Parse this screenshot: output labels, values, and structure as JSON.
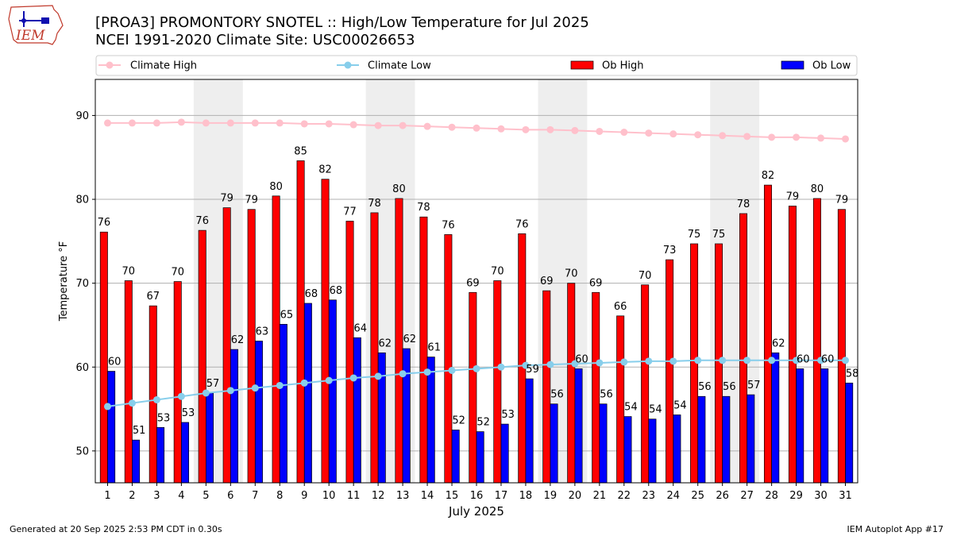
{
  "header": {
    "title_line1": "[PROA3] PROMONTORY SNOTEL :: High/Low Temperature for Jul 2025",
    "title_line2": "NCEI 1991-2020 Climate Site: USC00026653",
    "logo_text": "IEM"
  },
  "footer": {
    "generated": "Generated at 20 Sep 2025 2:53 PM CDT in 0.30s",
    "app": "IEM Autoplot App #17"
  },
  "colors": {
    "ob_high": "#ff0000",
    "ob_low": "#0000ff",
    "climate_high": "#ffc0cb",
    "climate_low": "#87ceeb",
    "weekend_shade": "#eeeeee",
    "grid": "#b0b0b0"
  },
  "chart_data": {
    "type": "bar",
    "xlabel": "July 2025",
    "ylabel": "Temperature °F",
    "ylim": [
      46.2,
      94.3
    ],
    "yticks": [
      50,
      60,
      70,
      80,
      90
    ],
    "grid": "horizontal",
    "legend_position": "top",
    "categories": [
      "1",
      "2",
      "3",
      "4",
      "5",
      "6",
      "7",
      "8",
      "9",
      "10",
      "11",
      "12",
      "13",
      "14",
      "15",
      "16",
      "17",
      "18",
      "19",
      "20",
      "21",
      "22",
      "23",
      "24",
      "25",
      "26",
      "27",
      "28",
      "29",
      "30",
      "31"
    ],
    "shaded_days": [
      [
        5,
        6
      ],
      [
        12,
        13
      ],
      [
        19,
        20
      ],
      [
        26,
        27
      ]
    ],
    "series": [
      {
        "name": "Climate High",
        "kind": "line",
        "values": [
          89.1,
          89.1,
          89.1,
          89.2,
          89.1,
          89.1,
          89.1,
          89.1,
          89.0,
          89.0,
          88.9,
          88.8,
          88.8,
          88.7,
          88.6,
          88.5,
          88.4,
          88.3,
          88.3,
          88.2,
          88.1,
          88.0,
          87.9,
          87.8,
          87.7,
          87.6,
          87.5,
          87.4,
          87.4,
          87.3,
          87.2
        ]
      },
      {
        "name": "Climate Low",
        "kind": "line",
        "values": [
          55.3,
          55.7,
          56.1,
          56.5,
          56.9,
          57.2,
          57.5,
          57.8,
          58.1,
          58.4,
          58.7,
          58.9,
          59.2,
          59.4,
          59.6,
          59.8,
          60.0,
          60.2,
          60.3,
          60.4,
          60.5,
          60.6,
          60.7,
          60.7,
          60.8,
          60.8,
          60.8,
          60.8,
          60.8,
          60.8,
          60.8
        ]
      },
      {
        "name": "Ob High",
        "kind": "bar",
        "values": [
          76.1,
          70.3,
          67.3,
          70.2,
          76.3,
          79.0,
          78.8,
          80.4,
          84.6,
          82.4,
          77.4,
          78.4,
          80.1,
          77.9,
          75.8,
          68.9,
          70.3,
          75.9,
          69.1,
          70.0,
          68.9,
          66.1,
          69.8,
          72.8,
          74.7,
          74.7,
          78.3,
          81.7,
          79.2,
          80.1,
          78.8
        ],
        "labels": [
          "76",
          "70",
          "67",
          "70",
          "76",
          "79",
          "79",
          "80",
          "85",
          "82",
          "77",
          "78",
          "80",
          "78",
          "76",
          "69",
          "70",
          "76",
          "69",
          "70",
          "69",
          "66",
          "70",
          "73",
          "75",
          "75",
          "78",
          "82",
          "79",
          "80",
          "79"
        ]
      },
      {
        "name": "Ob Low",
        "kind": "bar",
        "values": [
          59.5,
          51.3,
          52.8,
          53.4,
          56.9,
          62.1,
          63.1,
          65.1,
          67.6,
          68.0,
          63.5,
          61.7,
          62.2,
          61.2,
          52.5,
          52.3,
          53.2,
          58.6,
          55.6,
          59.8,
          55.6,
          54.1,
          53.8,
          54.3,
          56.5,
          56.5,
          56.7,
          61.7,
          59.8,
          59.8,
          58.1
        ],
        "labels": [
          "60",
          "51",
          "53",
          "53",
          "57",
          "62",
          "63",
          "65",
          "68",
          "68",
          "64",
          "62",
          "62",
          "61",
          "52",
          "52",
          "53",
          "59",
          "56",
          "60",
          "56",
          "54",
          "54",
          "54",
          "56",
          "56",
          "57",
          "62",
          "60",
          "60",
          "58"
        ]
      }
    ]
  }
}
